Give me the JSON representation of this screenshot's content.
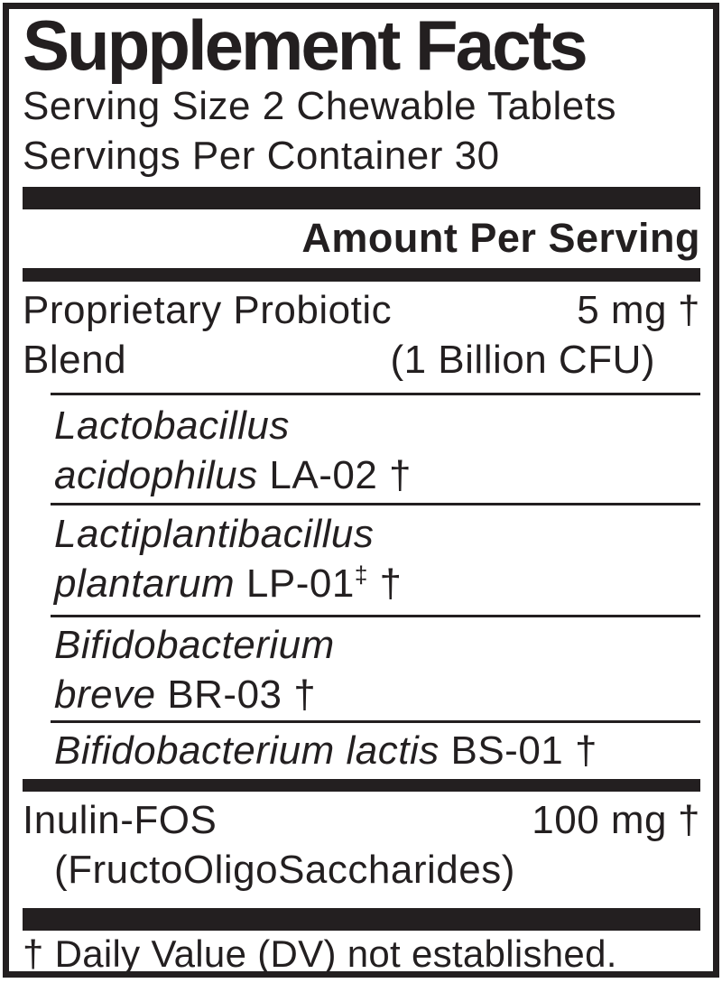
{
  "panel": {
    "title": "Supplement Facts",
    "serving_size": "Serving Size 2 Chewable Tablets",
    "servings_per_container": "Servings Per Container 30",
    "amount_header": "Amount Per Serving",
    "blend": {
      "name_line1": "Proprietary Probiotic",
      "name_line2": "Blend",
      "amount": "5 mg",
      "dv": "†",
      "amount_detail": "(1 Billion CFU)",
      "ingredients": [
        {
          "genus": "Lactobacillus",
          "species": "acidophilus",
          "strain": "LA-02",
          "sup": "",
          "dv": "†"
        },
        {
          "genus": "Lactiplantibacillus",
          "species": "plantarum",
          "strain": "LP-01",
          "sup": "‡",
          "dv": "†"
        },
        {
          "genus": "Bifidobacterium",
          "species": "breve",
          "strain": "BR-03",
          "sup": "",
          "dv": "†"
        },
        {
          "genus": "Bifidobacterium",
          "species": "lactis",
          "strain": "BS-01",
          "sup": "",
          "dv": "†"
        }
      ]
    },
    "inulin": {
      "name": "Inulin-FOS",
      "amount": "100 mg",
      "dv": "†",
      "detail": "(FructoOligoSaccharides)"
    },
    "footnote": "† Daily Value (DV) not established."
  },
  "colors": {
    "ink": "#231f20",
    "background": "#ffffff"
  }
}
